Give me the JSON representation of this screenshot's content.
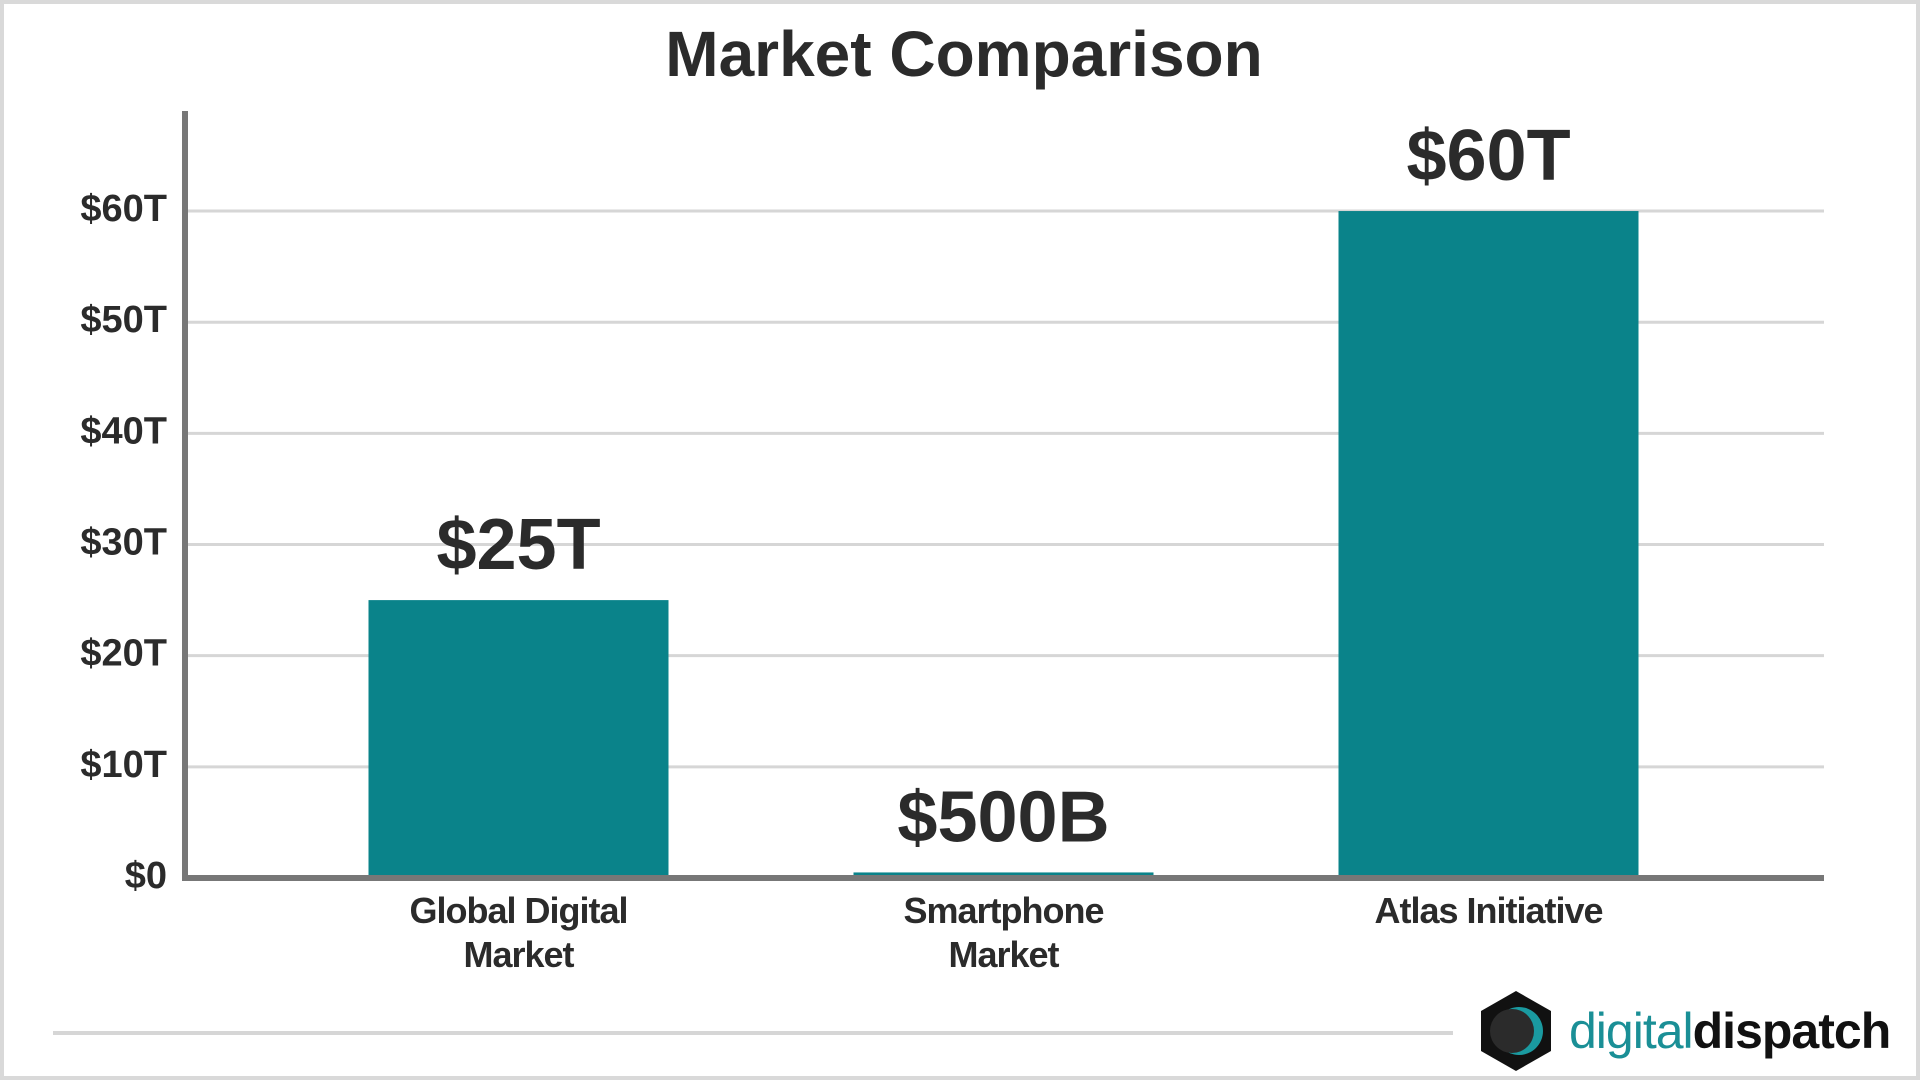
{
  "chart_data": {
    "type": "bar",
    "title": "Market Comparison",
    "categories": [
      "Global Digital Market",
      "Smartphone Market",
      "Atlas Initiative"
    ],
    "values": [
      25,
      0.5,
      60
    ],
    "value_labels": [
      "$25T",
      "$500B",
      "$60T"
    ],
    "color": "#0a838a",
    "ylim": [
      0,
      69
    ],
    "yticks": [
      {
        "value": 0,
        "label": "$0"
      },
      {
        "value": 10,
        "label": "$10T"
      },
      {
        "value": 20,
        "label": "$20T"
      },
      {
        "value": 30,
        "label": "$30T"
      },
      {
        "value": 40,
        "label": "$40T"
      },
      {
        "value": 50,
        "label": "$50T"
      },
      {
        "value": 60,
        "label": "$60T"
      }
    ],
    "grid": true
  },
  "brand": {
    "part1": "digital",
    "part2": "dispatch"
  }
}
